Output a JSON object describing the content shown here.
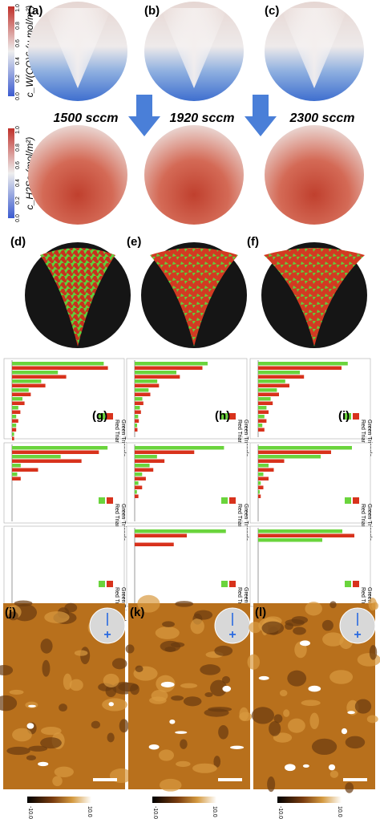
{
  "maps": {
    "labels": [
      "(a)",
      "(b)",
      "(c)"
    ],
    "colorbar_ticks": [
      "0.0",
      "0.2",
      "0.4",
      "0.6",
      "0.8",
      "1.0"
    ],
    "ylabel_top": "c_W(CO)6 (μ mol/m²)",
    "ylabel_bottom": "c_H2Se (mol/m²)",
    "flow_rates": [
      "1500 sccm",
      "1920 sccm",
      "2300 sccm"
    ]
  },
  "sims": {
    "labels": [
      "(d)",
      "(e)",
      "(f)"
    ]
  },
  "bar_charts": [
    {
      "label": "(g)",
      "xlim": [
        0,
        50
      ],
      "green": [
        44,
        22,
        14,
        8,
        5,
        3,
        2,
        2,
        1
      ],
      "red": [
        46,
        26,
        16,
        9,
        6,
        4,
        3,
        2,
        1
      ]
    },
    {
      "label": "(h)",
      "xlim": [
        0,
        300
      ],
      "green": [
        210,
        120,
        65,
        40,
        22,
        15,
        10,
        7
      ],
      "red": [
        195,
        130,
        70,
        45,
        25,
        18,
        12,
        8
      ]
    },
    {
      "label": "(i)",
      "xlim": [
        0,
        50
      ],
      "green": [
        43,
        20,
        13,
        9,
        6,
        4,
        3,
        2
      ],
      "red": [
        40,
        22,
        15,
        10,
        7,
        5,
        4,
        3
      ]
    },
    {
      "xlim": [
        0,
        6
      ],
      "green": [
        5.5,
        2.8,
        0.5,
        0.3
      ],
      "red": [
        5,
        4,
        1.5,
        0.5
      ]
    },
    {
      "xlim": [
        0,
        14
      ],
      "green": [
        12,
        3,
        2,
        1,
        0.5,
        0.3
      ],
      "red": [
        8,
        4,
        2.5,
        1.5,
        1,
        0.5
      ]
    },
    {
      "xlim": [
        0,
        20
      ],
      "green": [
        18,
        12,
        2,
        1,
        0.5,
        0.3
      ],
      "red": [
        14,
        5,
        3,
        2,
        1,
        0.5
      ]
    },
    {
      "xlim": [
        0,
        20
      ],
      "green": [],
      "red": []
    },
    {
      "xlim": [
        0,
        16
      ],
      "green": [
        14
      ],
      "red": [
        8,
        6
      ]
    },
    {
      "xlim": [
        0,
        26
      ],
      "green": [
        21,
        16
      ],
      "red": [
        24
      ]
    }
  ],
  "legend": [
    "Red Triangle",
    "Green Triangle"
  ],
  "afm": {
    "labels": [
      "(j)",
      "(k)",
      "(l)"
    ],
    "scale_min": "-10.0 nm",
    "scale_max": "10.0 nm"
  }
}
